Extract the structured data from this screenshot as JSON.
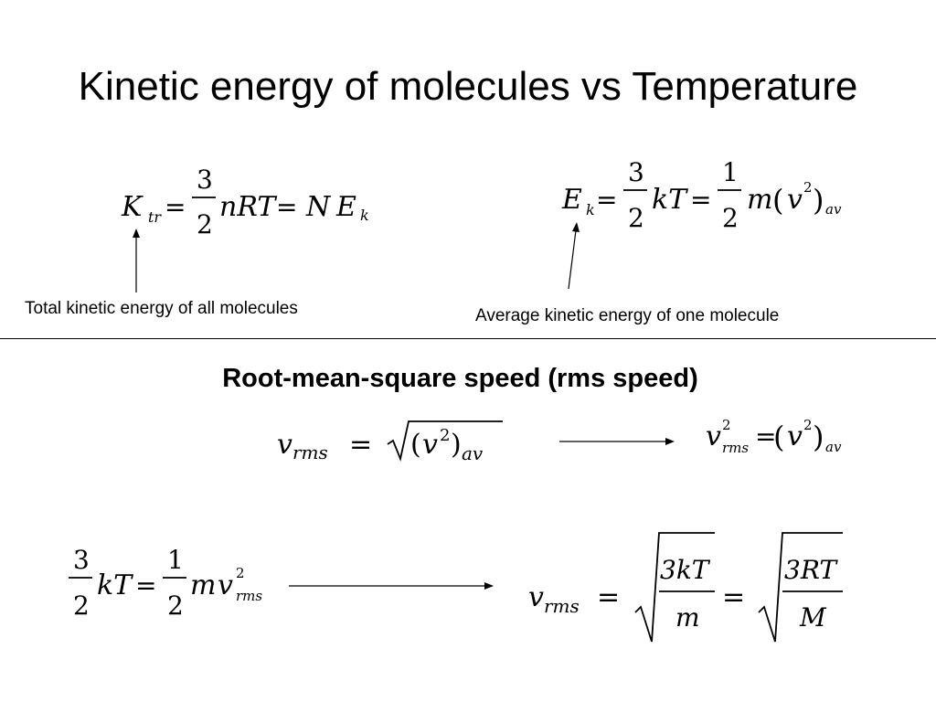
{
  "slide": {
    "title": "Kinetic energy of molecules vs Temperature",
    "subtitle": "Root-mean-square speed (rms speed)",
    "caption_left": "Total kinetic energy of all molecules",
    "caption_right": "Average kinetic energy of one molecule"
  },
  "math": {
    "k": "K",
    "tr": "tr",
    "eq": "=",
    "three": "3",
    "two": "2",
    "one": "1",
    "nRT": "nRT",
    "N": "N",
    "E": "E",
    "ksub": "k",
    "kT": "kT",
    "m": "m",
    "v": "v",
    "lparen": "(",
    "rparen": ")",
    "av": "av",
    "rms": "rms",
    "threekT": "3kT",
    "threeRT": "3RT",
    "M": "M"
  }
}
